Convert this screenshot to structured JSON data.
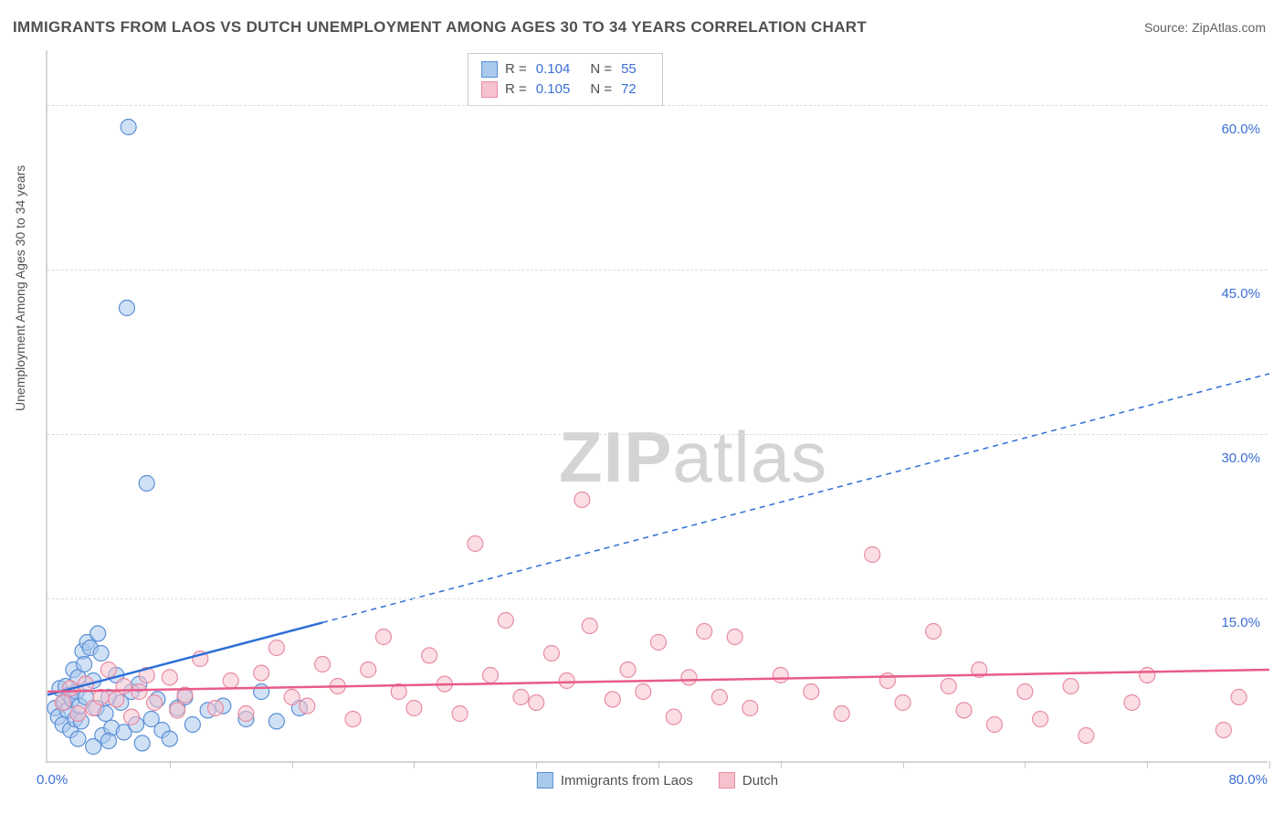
{
  "title": "IMMIGRANTS FROM LAOS VS DUTCH UNEMPLOYMENT AMONG AGES 30 TO 34 YEARS CORRELATION CHART",
  "source": "Source: ZipAtlas.com",
  "ylabel": "Unemployment Among Ages 30 to 34 years",
  "watermark_a": "ZIP",
  "watermark_b": "atlas",
  "chart": {
    "type": "scatter",
    "background_color": "#ffffff",
    "grid_color": "#dcdcdc",
    "axis_color": "#d5d5d5",
    "xlim": [
      0,
      80
    ],
    "ylim": [
      0,
      65
    ],
    "x_min_label": "0.0%",
    "x_max_label": "80.0%",
    "y_ticks": [
      15,
      30,
      45,
      60
    ],
    "y_tick_labels": [
      "15.0%",
      "30.0%",
      "45.0%",
      "60.0%"
    ],
    "x_minor_ticks": [
      8,
      16,
      24,
      32,
      40,
      48,
      56,
      64,
      72,
      80
    ],
    "marker_radius": 8.5,
    "marker_stroke_width": 1.2,
    "series": [
      {
        "name": "Immigrants from Laos",
        "fill_color": "#a9c9ed",
        "stroke_color": "#5a8fd6",
        "fill_opacity": 0.55,
        "R": "0.104",
        "N": "55",
        "trend": {
          "x1": 0,
          "y1": 6.2,
          "x2": 18,
          "y2": 12.8,
          "extend_x2": 80,
          "extend_y2": 35.5,
          "color": "#2d6fd6",
          "width": 2.5,
          "dash": "6,5"
        },
        "points": [
          [
            0.5,
            5.0
          ],
          [
            0.7,
            4.2
          ],
          [
            0.8,
            6.8
          ],
          [
            1.0,
            3.5
          ],
          [
            1.1,
            5.5
          ],
          [
            1.2,
            7.0
          ],
          [
            1.3,
            4.8
          ],
          [
            1.4,
            6.2
          ],
          [
            1.5,
            3.0
          ],
          [
            1.6,
            5.8
          ],
          [
            1.7,
            8.5
          ],
          [
            1.8,
            4.0
          ],
          [
            1.9,
            6.5
          ],
          [
            2.0,
            7.8
          ],
          [
            2.1,
            5.2
          ],
          [
            2.2,
            3.8
          ],
          [
            2.3,
            10.2
          ],
          [
            2.4,
            9.0
          ],
          [
            2.5,
            6.0
          ],
          [
            2.6,
            11.0
          ],
          [
            2.8,
            10.5
          ],
          [
            3.0,
            7.5
          ],
          [
            3.2,
            5.0
          ],
          [
            3.3,
            11.8
          ],
          [
            3.5,
            10.0
          ],
          [
            3.6,
            2.5
          ],
          [
            3.8,
            4.5
          ],
          [
            4.0,
            6.0
          ],
          [
            4.2,
            3.2
          ],
          [
            4.5,
            8.0
          ],
          [
            4.8,
            5.5
          ],
          [
            5.0,
            2.8
          ],
          [
            5.2,
            41.5
          ],
          [
            5.3,
            58.0
          ],
          [
            5.5,
            6.5
          ],
          [
            5.8,
            3.5
          ],
          [
            6.0,
            7.2
          ],
          [
            6.2,
            1.8
          ],
          [
            6.5,
            25.5
          ],
          [
            6.8,
            4.0
          ],
          [
            7.2,
            5.8
          ],
          [
            7.5,
            3.0
          ],
          [
            8.0,
            2.2
          ],
          [
            8.5,
            5.0
          ],
          [
            9.0,
            6.0
          ],
          [
            9.5,
            3.5
          ],
          [
            10.5,
            4.8
          ],
          [
            11.5,
            5.2
          ],
          [
            13.0,
            4.0
          ],
          [
            14.0,
            6.5
          ],
          [
            15.0,
            3.8
          ],
          [
            16.5,
            5.0
          ],
          [
            4.0,
            2.0
          ],
          [
            3.0,
            1.5
          ],
          [
            2.0,
            2.2
          ]
        ]
      },
      {
        "name": "Dutch",
        "fill_color": "#f6c2ce",
        "stroke_color": "#e88ba3",
        "fill_opacity": 0.55,
        "R": "0.105",
        "N": "72",
        "trend": {
          "x1": 0,
          "y1": 6.5,
          "x2": 80,
          "y2": 8.5,
          "color": "#e85b8a",
          "width": 2.5
        },
        "points": [
          [
            1.0,
            5.5
          ],
          [
            1.5,
            6.8
          ],
          [
            2.0,
            4.5
          ],
          [
            2.5,
            7.2
          ],
          [
            3.0,
            5.0
          ],
          [
            3.5,
            6.0
          ],
          [
            4.0,
            8.5
          ],
          [
            4.5,
            5.8
          ],
          [
            5.0,
            7.0
          ],
          [
            5.5,
            4.2
          ],
          [
            6.0,
            6.5
          ],
          [
            6.5,
            8.0
          ],
          [
            7.0,
            5.5
          ],
          [
            8.0,
            7.8
          ],
          [
            8.5,
            4.8
          ],
          [
            9.0,
            6.2
          ],
          [
            10.0,
            9.5
          ],
          [
            11.0,
            5.0
          ],
          [
            12.0,
            7.5
          ],
          [
            13.0,
            4.5
          ],
          [
            14.0,
            8.2
          ],
          [
            15.0,
            10.5
          ],
          [
            16.0,
            6.0
          ],
          [
            17.0,
            5.2
          ],
          [
            18.0,
            9.0
          ],
          [
            19.0,
            7.0
          ],
          [
            20.0,
            4.0
          ],
          [
            21.0,
            8.5
          ],
          [
            22.0,
            11.5
          ],
          [
            23.0,
            6.5
          ],
          [
            24.0,
            5.0
          ],
          [
            25.0,
            9.8
          ],
          [
            26.0,
            7.2
          ],
          [
            27.0,
            4.5
          ],
          [
            28.0,
            20.0
          ],
          [
            29.0,
            8.0
          ],
          [
            30.0,
            13.0
          ],
          [
            31.0,
            6.0
          ],
          [
            32.0,
            5.5
          ],
          [
            33.0,
            10.0
          ],
          [
            34.0,
            7.5
          ],
          [
            35.0,
            24.0
          ],
          [
            35.5,
            12.5
          ],
          [
            37.0,
            5.8
          ],
          [
            38.0,
            8.5
          ],
          [
            39.0,
            6.5
          ],
          [
            40.0,
            11.0
          ],
          [
            41.0,
            4.2
          ],
          [
            42.0,
            7.8
          ],
          [
            43.0,
            12.0
          ],
          [
            44.0,
            6.0
          ],
          [
            45.0,
            11.5
          ],
          [
            46.0,
            5.0
          ],
          [
            48.0,
            8.0
          ],
          [
            50.0,
            6.5
          ],
          [
            52.0,
            4.5
          ],
          [
            54.0,
            19.0
          ],
          [
            55.0,
            7.5
          ],
          [
            56.0,
            5.5
          ],
          [
            58.0,
            12.0
          ],
          [
            59.0,
            7.0
          ],
          [
            60.0,
            4.8
          ],
          [
            61.0,
            8.5
          ],
          [
            62.0,
            3.5
          ],
          [
            64.0,
            6.5
          ],
          [
            65.0,
            4.0
          ],
          [
            67.0,
            7.0
          ],
          [
            68.0,
            2.5
          ],
          [
            71.0,
            5.5
          ],
          [
            72.0,
            8.0
          ],
          [
            77.0,
            3.0
          ],
          [
            78.0,
            6.0
          ]
        ]
      }
    ]
  },
  "legend_top": [
    {
      "swatch_fill": "#a9c9ed",
      "swatch_stroke": "#5a8fd6",
      "r_label": "R =",
      "r_val": "0.104",
      "n_label": "N =",
      "n_val": "55"
    },
    {
      "swatch_fill": "#f6c2ce",
      "swatch_stroke": "#e88ba3",
      "r_label": "R =",
      "r_val": "0.105",
      "n_label": "N =",
      "n_val": "72"
    }
  ],
  "legend_bottom": [
    {
      "swatch_fill": "#a9c9ed",
      "swatch_stroke": "#5a8fd6",
      "label": "Immigrants from Laos"
    },
    {
      "swatch_fill": "#f6c2ce",
      "swatch_stroke": "#e88ba3",
      "label": "Dutch"
    }
  ]
}
